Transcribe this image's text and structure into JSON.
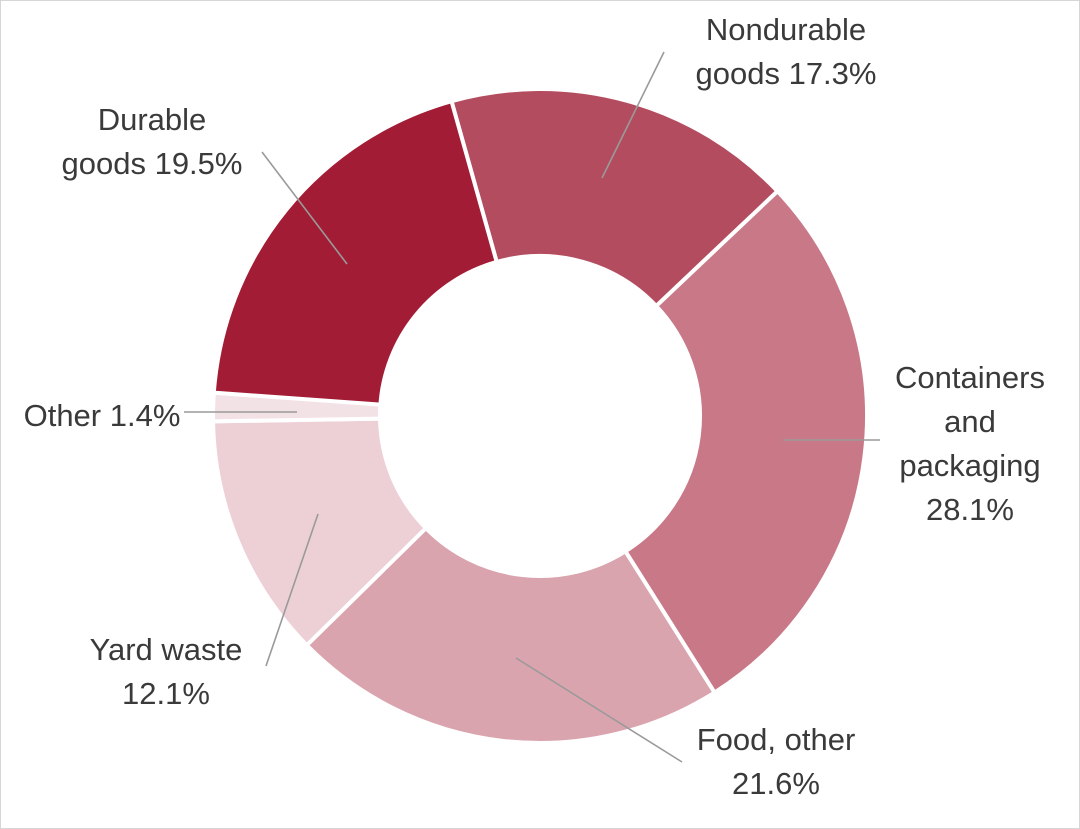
{
  "chart_data": {
    "type": "pie",
    "donut": true,
    "title": "",
    "slices": [
      {
        "label_lines": [
          "Nondurable",
          "goods 17.3%"
        ],
        "value": 17.3,
        "color": "#b44c5f"
      },
      {
        "label_lines": [
          "Containers",
          "and",
          "packaging",
          "28.1%"
        ],
        "value": 28.1,
        "color": "#c97887"
      },
      {
        "label_lines": [
          "Food, other",
          "21.6%"
        ],
        "value": 21.6,
        "color": "#daa4ae"
      },
      {
        "label_lines": [
          "Yard waste",
          "12.1%"
        ],
        "value": 12.1,
        "color": "#edd0d6"
      },
      {
        "label_lines": [
          "Other 1.4%"
        ],
        "value": 1.4,
        "color": "#f3e2e5"
      },
      {
        "label_lines": [
          "Durable",
          "goods 19.5%"
        ],
        "value": 19.5,
        "color": "#a31c35"
      }
    ]
  }
}
